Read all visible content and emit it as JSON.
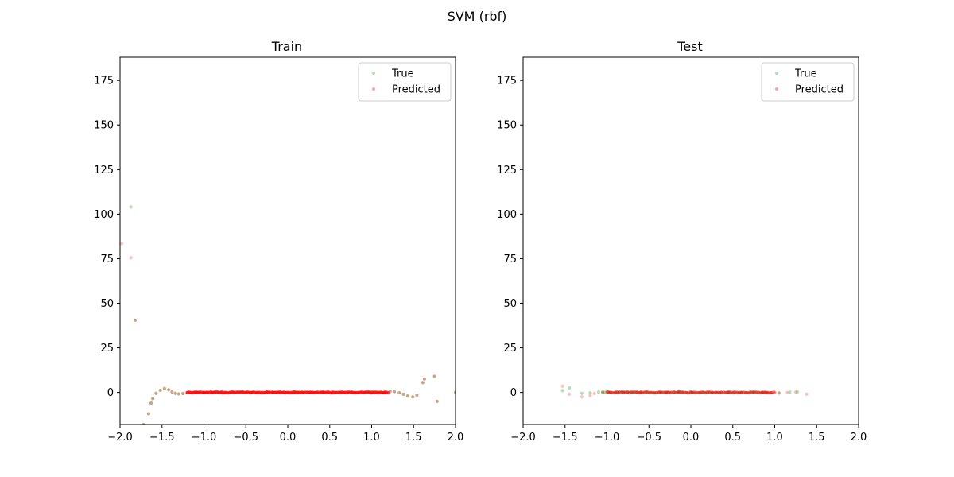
{
  "figure": {
    "suptitle": "SVM (rbf)"
  },
  "colors": {
    "true_marker": "#2ca02c",
    "predicted_marker": "#ff0000"
  },
  "chart_data": [
    {
      "type": "scatter",
      "title": "Train",
      "xlabel": "",
      "ylabel": "",
      "xlim": [
        -2.0,
        2.0
      ],
      "ylim": [
        -18,
        188
      ],
      "xticks": [
        -2.0,
        -1.5,
        -1.0,
        -0.5,
        0.0,
        0.5,
        1.0,
        1.5,
        2.0
      ],
      "xtick_labels": [
        "−2.0",
        "−1.5",
        "−1.0",
        "−0.5",
        "0.0",
        "0.5",
        "1.0",
        "1.5",
        "2.0"
      ],
      "yticks": [
        0,
        25,
        50,
        75,
        100,
        125,
        150,
        175
      ],
      "ytick_labels": [
        "0",
        "25",
        "50",
        "75",
        "100",
        "125",
        "150",
        "175"
      ],
      "grid": false,
      "legend": "top-right",
      "series": [
        {
          "name": "True",
          "color": "#2ca02c",
          "points": [
            [
              -1.87,
              104
            ],
            [
              -1.82,
              40.5
            ],
            [
              -1.72,
              -18
            ],
            [
              -1.66,
              -12
            ],
            [
              -1.63,
              -6
            ],
            [
              -1.61,
              -3.5
            ],
            [
              -1.57,
              -0.5
            ],
            [
              -1.52,
              1.2
            ],
            [
              -1.47,
              2.2
            ],
            [
              -1.42,
              1.5
            ],
            [
              -1.38,
              0.3
            ],
            [
              -1.34,
              -0.5
            ],
            [
              -1.3,
              -0.8
            ],
            [
              -1.25,
              -0.6
            ],
            [
              -1.2,
              -0.2
            ],
            [
              -1.1,
              0.1
            ],
            [
              -1.0,
              0.1
            ],
            [
              1.15,
              0.2
            ],
            [
              1.22,
              0.5
            ],
            [
              1.27,
              0.4
            ],
            [
              1.33,
              -0.2
            ],
            [
              1.38,
              -1.0
            ],
            [
              1.43,
              -2.0
            ],
            [
              1.49,
              -2.5
            ],
            [
              1.54,
              -1.5
            ],
            [
              1.61,
              5.5
            ],
            [
              1.63,
              7.5
            ],
            [
              1.75,
              9.0
            ],
            [
              1.78,
              -5.0
            ],
            [
              2.0,
              0
            ]
          ]
        },
        {
          "name": "Predicted",
          "color": "#ff0000",
          "points": [
            [
              -1.98,
              83.5
            ],
            [
              -1.87,
              75.5
            ],
            [
              -1.82,
              40.5
            ],
            [
              -1.72,
              -18
            ],
            [
              -1.66,
              -12
            ],
            [
              -1.63,
              -6
            ],
            [
              -1.61,
              -3.5
            ],
            [
              -1.57,
              -0.5
            ],
            [
              -1.52,
              1.2
            ],
            [
              -1.47,
              2.2
            ],
            [
              -1.42,
              1.5
            ],
            [
              -1.38,
              0.3
            ],
            [
              -1.34,
              -0.5
            ],
            [
              -1.3,
              -0.8
            ],
            [
              -1.25,
              -0.6
            ],
            [
              -1.2,
              -0.2
            ],
            [
              1.22,
              0.5
            ],
            [
              1.27,
              0.4
            ],
            [
              1.33,
              -0.2
            ],
            [
              1.38,
              -1.0
            ],
            [
              1.43,
              -2.0
            ],
            [
              1.49,
              -2.5
            ],
            [
              1.54,
              -1.5
            ],
            [
              1.61,
              5.5
            ],
            [
              1.63,
              7.5
            ],
            [
              1.75,
              9.0
            ],
            [
              1.78,
              -5.0
            ],
            [
              2.0,
              0
            ]
          ],
          "band": {
            "x_from": -1.2,
            "x_to": 1.2,
            "y": 0,
            "count": 320
          }
        }
      ]
    },
    {
      "type": "scatter",
      "title": "Test",
      "xlabel": "",
      "ylabel": "",
      "xlim": [
        -2.0,
        2.0
      ],
      "ylim": [
        -18,
        188
      ],
      "xticks": [
        -2.0,
        -1.5,
        -1.0,
        -0.5,
        0.0,
        0.5,
        1.0,
        1.5,
        2.0
      ],
      "xtick_labels": [
        "−2.0",
        "−1.5",
        "−1.0",
        "−0.5",
        "0.0",
        "0.5",
        "1.0",
        "1.5",
        "2.0"
      ],
      "yticks": [
        0,
        25,
        50,
        75,
        100,
        125,
        150,
        175
      ],
      "ytick_labels": [
        "0",
        "25",
        "50",
        "75",
        "100",
        "125",
        "150",
        "175"
      ],
      "grid": false,
      "legend": "top-right",
      "series": [
        {
          "name": "True",
          "color": "#2ca02c",
          "points": [
            [
              -1.53,
              1.0
            ],
            [
              -1.45,
              2.5
            ],
            [
              -1.3,
              -0.5
            ],
            [
              -1.2,
              -0.2
            ],
            [
              -1.1,
              0.2
            ],
            [
              -1.05,
              0.5
            ],
            [
              -0.98,
              0.3
            ],
            [
              -0.9,
              -0.3
            ],
            [
              -0.8,
              0.2
            ],
            [
              -0.7,
              -0.2
            ],
            [
              -0.6,
              0.1
            ],
            [
              -0.45,
              -0.1
            ],
            [
              -0.3,
              0.1
            ],
            [
              -0.15,
              0.0
            ],
            [
              0.0,
              0.1
            ],
            [
              0.15,
              -0.1
            ],
            [
              0.3,
              0.0
            ],
            [
              0.45,
              0.1
            ],
            [
              0.6,
              -0.2
            ],
            [
              0.75,
              0.1
            ],
            [
              0.85,
              0.2
            ],
            [
              0.95,
              -0.3
            ],
            [
              1.05,
              -0.4
            ],
            [
              1.18,
              0.2
            ],
            [
              1.27,
              0.3
            ]
          ],
          "band": {
            "x_from": -1.05,
            "x_to": 0.95,
            "y": 0,
            "count": 70
          }
        },
        {
          "name": "Predicted",
          "color": "#ff0000",
          "points": [
            [
              -1.53,
              3.5
            ],
            [
              -1.45,
              -1.0
            ],
            [
              -1.3,
              -2.5
            ],
            [
              -1.2,
              -1.8
            ],
            [
              -1.15,
              -0.6
            ],
            [
              -1.05,
              0.0
            ],
            [
              -0.95,
              -0.3
            ],
            [
              -0.6,
              -0.2
            ],
            [
              0.9,
              -0.3
            ],
            [
              1.05,
              -0.2
            ],
            [
              1.15,
              -0.1
            ],
            [
              1.25,
              0.2
            ],
            [
              1.38,
              -1.0
            ]
          ],
          "band": {
            "x_from": -1.0,
            "x_to": 1.0,
            "y": 0,
            "count": 120
          }
        }
      ]
    }
  ]
}
